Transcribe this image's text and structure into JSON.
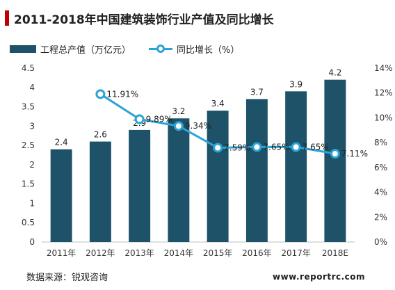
{
  "title": "2011-2018年中国建筑装饰行业产值及同比增长",
  "legend": {
    "bar_label": "工程总产值（万亿元）",
    "line_label": "同比增长（%）"
  },
  "colors": {
    "bar": "#1d5268",
    "line": "#2ca3d6",
    "accent": "#c00000"
  },
  "chart_data": {
    "type": "bar",
    "categories": [
      "2011年",
      "2012年",
      "2013年",
      "2014年",
      "2015年",
      "2016年",
      "2017年",
      "2018E"
    ],
    "series": [
      {
        "name": "工程总产值（万亿元）",
        "type": "bar",
        "axis": "left",
        "values": [
          2.4,
          2.6,
          2.9,
          3.2,
          3.4,
          3.7,
          3.9,
          4.2
        ],
        "labels": [
          "2.4",
          "2.6",
          "2.9",
          "3.2",
          "3.4",
          "3.7",
          "3.9",
          "4.2"
        ]
      },
      {
        "name": "同比增长（%）",
        "type": "line",
        "axis": "right",
        "values": [
          null,
          11.91,
          9.89,
          9.34,
          7.59,
          7.65,
          7.65,
          7.11
        ],
        "labels": [
          "",
          "11.91%",
          "9.89%",
          "9.34%",
          "7.59%",
          "7.65%",
          "7.65%",
          "7.11%"
        ]
      }
    ],
    "y_left": {
      "min": 0,
      "max": 4.5,
      "ticks": [
        "0",
        "0.5",
        "1",
        "1.5",
        "2",
        "2.5",
        "3",
        "3.5",
        "4",
        "4.5"
      ]
    },
    "y_right": {
      "min": 0,
      "max": 14,
      "ticks": [
        "0%",
        "2%",
        "4%",
        "6%",
        "8%",
        "10%",
        "12%",
        "14%"
      ]
    },
    "grid": false,
    "legend_position": "top-left"
  },
  "footer": {
    "source": "数据来源：锐观咨询",
    "website": "www.reportrc.com"
  }
}
